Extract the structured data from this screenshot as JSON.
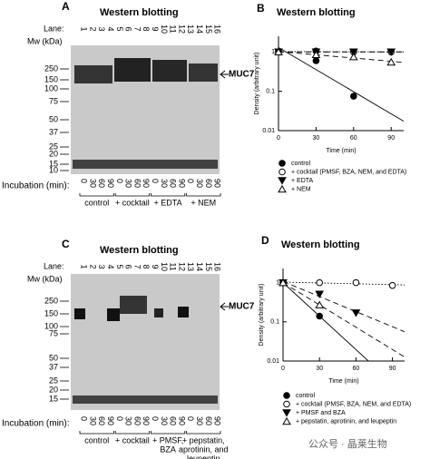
{
  "blots": [
    {
      "panel": "A",
      "title": "Western blotting",
      "lane_label": "Lane:",
      "lanes": [
        "1",
        "2",
        "3",
        "4",
        "5",
        "6",
        "7",
        "8",
        "9",
        "10",
        "11",
        "12",
        "13",
        "14",
        "15",
        "16"
      ],
      "mw_label": "Mw (kDa)",
      "mw": [
        "250",
        "150",
        "100",
        "75",
        "50",
        "37",
        "25",
        "20",
        "15",
        "10"
      ],
      "marker": "MUC7",
      "incubation_label": "Incubation (min):",
      "times": [
        "0",
        "30",
        "60",
        "90",
        "0",
        "30",
        "60",
        "90",
        "0",
        "30",
        "60",
        "90",
        "0",
        "30",
        "60",
        "90"
      ],
      "groups": [
        [
          "control"
        ],
        [
          "+ cocktail"
        ],
        [
          "+ EDTA"
        ],
        [
          "+ NEM"
        ]
      ]
    },
    {
      "panel": "C",
      "title": "Western blotting",
      "lane_label": "Lane:",
      "lanes": [
        "1",
        "2",
        "3",
        "4",
        "5",
        "6",
        "7",
        "8",
        "9",
        "10",
        "11",
        "12",
        "13",
        "14",
        "15",
        "16"
      ],
      "mw_label": "Mw (kDa)",
      "mw": [
        "250",
        "150",
        "100",
        "75",
        "50",
        "37",
        "25",
        "20",
        "15"
      ],
      "marker": "MUC7",
      "incubation_label": "Incubation (min):",
      "times": [
        "0",
        "30",
        "60",
        "90",
        "0",
        "30",
        "60",
        "90",
        "0",
        "30",
        "60",
        "90",
        "0",
        "30",
        "60",
        "90"
      ],
      "groups": [
        [
          "control"
        ],
        [
          "+ cocktail"
        ],
        [
          "+ PMSF,",
          "BZA"
        ],
        [
          "+ pepstatin,",
          "aprotinin, and",
          "leupeptin"
        ]
      ]
    }
  ],
  "chart_data": [
    {
      "type": "scatter",
      "panel": "B",
      "title": "Western blotting",
      "x_label": "Time (min)",
      "y_label": "Density (arbitrary unit)",
      "ylog": true,
      "xlim": [
        0,
        100
      ],
      "ylim": [
        0.01,
        2.5
      ],
      "xticks": [
        0,
        30,
        60,
        90
      ],
      "yticks": [
        0.01,
        0.1,
        1
      ],
      "series": [
        {
          "name": "control",
          "color": "#000000",
          "marker": "circle-filled",
          "line": "solid",
          "x": [
            0,
            30,
            60
          ],
          "values": [
            1,
            0.6,
            0.075
          ]
        },
        {
          "name": "+ cocktail (PMSF, BZA, NEM, and EDTA)",
          "color": "#000000",
          "marker": "circle-open",
          "line": "dotted",
          "x": [
            0,
            30,
            60,
            90
          ],
          "values": [
            1,
            1.05,
            1,
            1
          ]
        },
        {
          "name": "+ EDTA",
          "color": "#000000",
          "marker": "triangle-down-filled",
          "line": "dashed",
          "x": [
            0,
            30,
            60,
            90
          ],
          "values": [
            1,
            1,
            1,
            1
          ]
        },
        {
          "name": "+ NEM",
          "color": "#000000",
          "marker": "triangle-up-open",
          "line": "dashed",
          "x": [
            0,
            30,
            60,
            90
          ],
          "values": [
            1,
            0.85,
            0.75,
            0.55
          ]
        }
      ]
    },
    {
      "type": "scatter",
      "panel": "D",
      "title": "Western blotting",
      "x_label": "Time (min)",
      "y_label": "Density (arbitrary unit)",
      "ylog": true,
      "xlim": [
        0,
        100
      ],
      "ylim": [
        0.01,
        2.3
      ],
      "xticks": [
        0,
        30,
        60,
        90
      ],
      "yticks": [
        0.01,
        0.1,
        1
      ],
      "series": [
        {
          "name": "control",
          "color": "#000000",
          "marker": "circle-filled",
          "line": "solid",
          "x": [
            0,
            30
          ],
          "values": [
            1,
            0.14
          ]
        },
        {
          "name": "+ cocktail (PMSF, BZA, NEM, and EDTA)",
          "color": "#000000",
          "marker": "circle-open",
          "line": "dotted",
          "x": [
            0,
            30,
            60,
            90
          ],
          "values": [
            1,
            1,
            1,
            0.85
          ]
        },
        {
          "name": "+ PMSF and BZA",
          "color": "#000000",
          "marker": "triangle-down-filled",
          "line": "dashed",
          "x": [
            0,
            30,
            60
          ],
          "values": [
            1,
            0.51,
            0.17
          ]
        },
        {
          "name": "+ pepstatin, aprotinin, and leupeptin",
          "color": "#000000",
          "marker": "triangle-up-open",
          "line": "dashed",
          "x": [
            0,
            30
          ],
          "values": [
            1,
            0.27
          ]
        }
      ]
    }
  ],
  "watermark": "公众号 · 晶莱生物"
}
